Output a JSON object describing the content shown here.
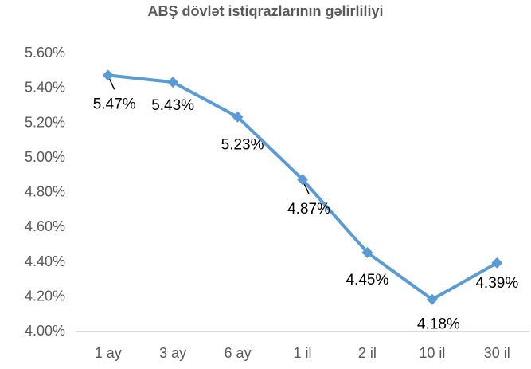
{
  "chart_data": {
    "type": "line",
    "title": "ABŞ dövlət istiqrazlarının gəlirliliyi",
    "categories": [
      "1 ay",
      "3 ay",
      "6 ay",
      "1 il",
      "2 il",
      "10 il",
      "30 il"
    ],
    "series": [
      {
        "values": [
          5.47,
          5.43,
          5.23,
          4.87,
          4.45,
          4.18,
          4.39
        ],
        "data_labels": [
          "5.47%",
          "5.43%",
          "5.23%",
          "4.87%",
          "4.45%",
          "4.18%",
          "4.39%"
        ],
        "color": "#5B9BD5",
        "marker": "diamond"
      }
    ],
    "ylim": [
      4.0,
      5.6
    ],
    "yticks": [
      4.0,
      4.2,
      4.4,
      4.6,
      4.8,
      5.0,
      5.2,
      5.4,
      5.6
    ],
    "ytick_labels": [
      "4.00%",
      "4.20%",
      "4.40%",
      "4.60%",
      "4.80%",
      "5.00%",
      "5.20%",
      "5.40%",
      "5.60%"
    ],
    "xlabel": "",
    "ylabel": "",
    "grid": false,
    "legend": "none"
  }
}
